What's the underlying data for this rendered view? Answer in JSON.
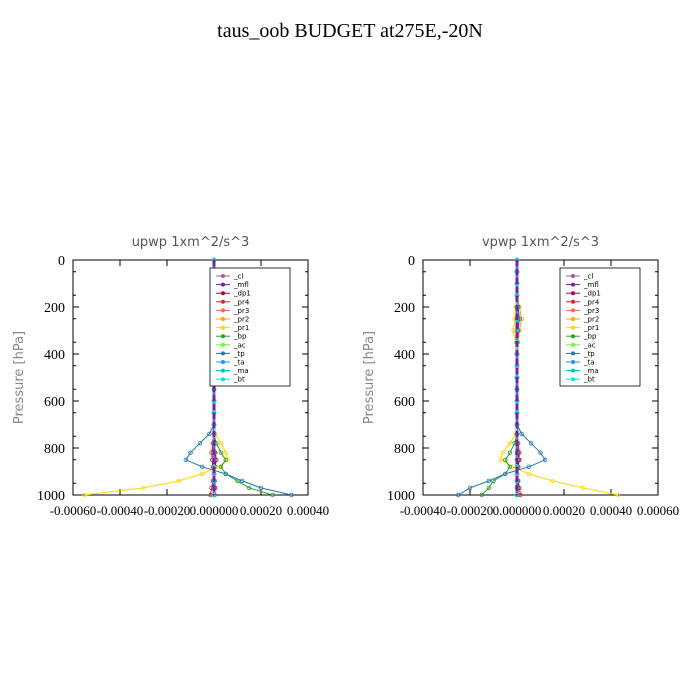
{
  "figure_title": "taus_oob  BUDGET at275E,-20N",
  "legend_labels": [
    "_cl",
    "_mfl",
    "_dp1",
    "_pr4",
    "_pr3",
    "_pr2",
    "_pr1",
    "_bp",
    "_ac",
    "_tp",
    "_ta",
    "_ma",
    "_bt"
  ],
  "legend_colors": [
    "#9b59b6",
    "#7b1fa2",
    "#b0004a",
    "#d62728",
    "#ff6a4d",
    "#ffa500",
    "#ffd700",
    "#2ca02c",
    "#66ff33",
    "#1f77b4",
    "#1e90ff",
    "#00bcd4",
    "#00e5ee"
  ],
  "chart_data": [
    {
      "type": "line",
      "title": "upwp   1xm^2/s^3",
      "ylabel": "Pressure [hPa]",
      "xlabel": "",
      "xlim": [
        -0.0006,
        0.0004
      ],
      "ylim": [
        1000,
        0
      ],
      "x_ticks": [
        "-0.00060",
        "-0.00040",
        "-0.00020",
        "0.000000",
        "0.00020",
        "0.00040"
      ],
      "y_ticks": [
        "0",
        "200",
        "400",
        "600",
        "800",
        "1000"
      ],
      "legend_position": "top-right",
      "pressure": [
        0,
        50,
        100,
        150,
        200,
        250,
        300,
        350,
        400,
        450,
        500,
        550,
        600,
        650,
        700,
        740,
        780,
        820,
        850,
        880,
        910,
        940,
        970,
        1000
      ],
      "series": [
        {
          "name": "_cl",
          "values": [
            0,
            0,
            0,
            0,
            0,
            0,
            0,
            0,
            0,
            0,
            0,
            0,
            0,
            0,
            0,
            0,
            0,
            0,
            0,
            0,
            0,
            0,
            0,
            0
          ]
        },
        {
          "name": "_mfl",
          "values": [
            0,
            0,
            0,
            0,
            0,
            0,
            0,
            0,
            0,
            0,
            0,
            0,
            0,
            0,
            0,
            0,
            0,
            0,
            0,
            0,
            0,
            0,
            0,
            0
          ]
        },
        {
          "name": "_dp1",
          "values": [
            0,
            0,
            0,
            0,
            0,
            0,
            0,
            0,
            0,
            0,
            0,
            0,
            0,
            0,
            0,
            0,
            0,
            5e-06,
            1e-05,
            5e-06,
            0,
            3e-06,
            5e-06,
            3e-06
          ]
        },
        {
          "name": "_pr4",
          "values": [
            0,
            0,
            0,
            0,
            0,
            0,
            0,
            0,
            0,
            0,
            0,
            0,
            0,
            0,
            0,
            0,
            -5e-06,
            -1e-05,
            -8e-06,
            -5e-06,
            0,
            -5e-06,
            -1e-05,
            -1.5e-05
          ]
        },
        {
          "name": "_pr3",
          "values": [
            0,
            0,
            0,
            0,
            0,
            0,
            0,
            0,
            0,
            0,
            0,
            0,
            0,
            0,
            0,
            0,
            0,
            0,
            0,
            0,
            0,
            0,
            0,
            0
          ]
        },
        {
          "name": "_pr2",
          "values": [
            0,
            0,
            0,
            0,
            0,
            3e-06,
            5e-06,
            2e-06,
            0,
            0,
            0,
            0,
            0,
            0,
            0,
            0,
            0,
            0,
            0,
            0,
            0,
            0,
            0,
            0
          ]
        },
        {
          "name": "_pr1",
          "values": [
            0,
            0,
            0,
            0,
            0,
            0,
            0,
            0,
            0,
            0,
            0,
            0,
            0,
            0,
            0,
            5e-06,
            3e-05,
            5e-05,
            6e-05,
            2e-05,
            -5e-05,
            -0.00015,
            -0.0003,
            -0.00055
          ]
        },
        {
          "name": "_bp",
          "values": [
            0,
            0,
            0,
            0,
            0,
            0,
            0,
            0,
            0,
            0,
            0,
            0,
            0,
            0,
            0,
            0,
            1e-05,
            3e-05,
            5e-05,
            3e-05,
            5e-05,
            0.0001,
            0.00015,
            0.00025
          ]
        },
        {
          "name": "_ac",
          "values": [
            0,
            0,
            0,
            0,
            0,
            0,
            0,
            0,
            0,
            0,
            0,
            0,
            0,
            0,
            0,
            0,
            0,
            0,
            0,
            0,
            0,
            0,
            0,
            0
          ]
        },
        {
          "name": "_tp",
          "values": [
            0,
            0,
            0,
            0,
            -5e-06,
            -1e-05,
            -5e-06,
            0,
            0,
            0,
            0,
            0,
            0,
            0,
            0,
            -2e-05,
            -6e-05,
            -0.0001,
            -0.00012,
            -5e-05,
            5e-05,
            0.00012,
            0.0002,
            0.00033
          ]
        },
        {
          "name": "_ta",
          "values": [
            0,
            0,
            0,
            0,
            0,
            0,
            0,
            0,
            0,
            0,
            0,
            0,
            0,
            0,
            0,
            0,
            0,
            0,
            0,
            0,
            0,
            0,
            0,
            0
          ]
        },
        {
          "name": "_ma",
          "values": [
            0,
            0,
            0,
            0,
            0,
            0,
            0,
            0,
            0,
            0,
            0,
            0,
            0,
            0,
            0,
            0,
            0,
            0,
            0,
            0,
            0,
            0,
            0,
            0
          ]
        },
        {
          "name": "_bt",
          "values": [
            0,
            0,
            0,
            0,
            0,
            0,
            0,
            0,
            0,
            0,
            0,
            0,
            0,
            0,
            0,
            0,
            0,
            0,
            0,
            0,
            0,
            0,
            0,
            0
          ]
        }
      ]
    },
    {
      "type": "line",
      "title": "vpwp   1xm^2/s^3",
      "ylabel": "Pressure [hPa]",
      "xlabel": "",
      "xlim": [
        -0.0004,
        0.0006
      ],
      "ylim": [
        1000,
        0
      ],
      "x_ticks": [
        "-0.00040",
        "-0.00020",
        "0.000000",
        "0.00020",
        "0.00040",
        "0.00060"
      ],
      "y_ticks": [
        "0",
        "200",
        "400",
        "600",
        "800",
        "1000"
      ],
      "legend_position": "top-right",
      "pressure": [
        0,
        50,
        100,
        150,
        200,
        250,
        300,
        350,
        400,
        450,
        500,
        550,
        600,
        650,
        700,
        740,
        780,
        820,
        850,
        880,
        910,
        940,
        970,
        1000
      ],
      "series": [
        {
          "name": "_cl",
          "values": [
            0,
            0,
            0,
            0,
            0,
            0,
            0,
            0,
            0,
            0,
            0,
            0,
            0,
            0,
            0,
            0,
            0,
            0,
            0,
            0,
            0,
            0,
            0,
            0
          ]
        },
        {
          "name": "_mfl",
          "values": [
            0,
            0,
            0,
            0,
            0,
            0,
            0,
            0,
            0,
            0,
            0,
            0,
            0,
            0,
            0,
            0,
            0,
            0,
            0,
            0,
            0,
            0,
            0,
            0
          ]
        },
        {
          "name": "_dp1",
          "values": [
            0,
            0,
            0,
            0,
            0,
            0,
            0,
            0,
            0,
            0,
            0,
            0,
            0,
            0,
            0,
            0,
            0,
            5e-06,
            1e-05,
            5e-06,
            0,
            3e-06,
            5e-06,
            3e-06
          ]
        },
        {
          "name": "_pr4",
          "values": [
            0,
            0,
            0,
            0,
            0,
            0,
            0,
            0,
            0,
            0,
            0,
            0,
            0,
            0,
            0,
            0,
            5e-06,
            1e-05,
            8e-06,
            5e-06,
            0,
            5e-06,
            1e-05,
            1.5e-05
          ]
        },
        {
          "name": "_pr3",
          "values": [
            0,
            0,
            0,
            0,
            0,
            0,
            0,
            0,
            0,
            0,
            0,
            0,
            0,
            0,
            0,
            0,
            0,
            0,
            0,
            0,
            0,
            0,
            0,
            0
          ]
        },
        {
          "name": "_pr2",
          "values": [
            0,
            0,
            0,
            0,
            1e-05,
            2e-05,
            1e-05,
            5e-06,
            0,
            0,
            0,
            0,
            0,
            0,
            0,
            0,
            0,
            0,
            0,
            0,
            0,
            0,
            0,
            0
          ]
        },
        {
          "name": "_pr1",
          "values": [
            0,
            0,
            0,
            0,
            -5e-06,
            -1e-05,
            -1.5e-05,
            -5e-06,
            0,
            0,
            0,
            0,
            0,
            0,
            0,
            -5e-06,
            -3e-05,
            -6e-05,
            -7e-05,
            -2e-05,
            5e-05,
            0.00015,
            0.00028,
            0.00043
          ]
        },
        {
          "name": "_bp",
          "values": [
            0,
            0,
            0,
            0,
            0,
            0,
            0,
            0,
            0,
            0,
            0,
            0,
            0,
            0,
            0,
            0,
            -1e-05,
            -3e-05,
            -5e-05,
            -3e-05,
            -5e-05,
            -0.0001,
            -0.00012,
            -0.00015
          ]
        },
        {
          "name": "_ac",
          "values": [
            0,
            0,
            0,
            0,
            0,
            0,
            0,
            0,
            0,
            0,
            0,
            0,
            0,
            0,
            0,
            0,
            0,
            0,
            0,
            0,
            0,
            0,
            0,
            0
          ]
        },
        {
          "name": "_tp",
          "values": [
            0,
            0,
            0,
            0,
            5e-06,
            1e-05,
            5e-06,
            0,
            0,
            0,
            0,
            0,
            0,
            0,
            0,
            2e-05,
            6e-05,
            0.0001,
            0.00012,
            5e-05,
            -5e-05,
            -0.00012,
            -0.0002,
            -0.00025
          ]
        },
        {
          "name": "_ta",
          "values": [
            0,
            0,
            0,
            0,
            0,
            0,
            0,
            0,
            0,
            0,
            0,
            0,
            0,
            0,
            0,
            0,
            0,
            0,
            0,
            0,
            0,
            0,
            0,
            0
          ]
        },
        {
          "name": "_ma",
          "values": [
            0,
            0,
            0,
            0,
            0,
            0,
            0,
            0,
            0,
            0,
            0,
            0,
            0,
            0,
            0,
            0,
            0,
            0,
            0,
            0,
            0,
            0,
            0,
            0
          ]
        },
        {
          "name": "_bt",
          "values": [
            0,
            0,
            0,
            0,
            0,
            0,
            0,
            0,
            0,
            0,
            0,
            0,
            0,
            0,
            0,
            0,
            0,
            0,
            0,
            0,
            0,
            0,
            0,
            0
          ]
        }
      ]
    }
  ]
}
